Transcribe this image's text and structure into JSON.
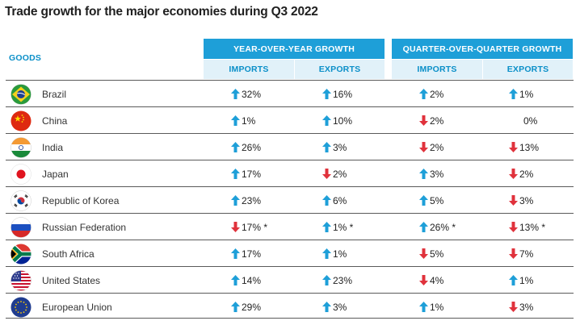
{
  "title": "Trade growth for the major economies during Q3 2022",
  "header": {
    "goods": "GOODS",
    "yoy": "YEAR-OVER-YEAR GROWTH",
    "qoq": "QUARTER-OVER-QUARTER GROWTH",
    "yoy_imports": "IMPORTS",
    "yoy_exports": "EXPORTS",
    "qoq_imports": "IMPORTS",
    "qoq_exports": "EXPORTS"
  },
  "colors": {
    "up": "#1e9fd8",
    "down": "#e0323c",
    "accent": "#1e9fd8"
  },
  "rows": [
    {
      "country": "Brazil",
      "flag": "brazil-flag-icon",
      "yoy_imp": {
        "dir": "up",
        "text": "32%"
      },
      "yoy_exp": {
        "dir": "up",
        "text": "16%"
      },
      "qoq_imp": {
        "dir": "up",
        "text": "2%"
      },
      "qoq_exp": {
        "dir": "up",
        "text": "1%"
      }
    },
    {
      "country": "China",
      "flag": "china-flag-icon",
      "yoy_imp": {
        "dir": "up",
        "text": "1%"
      },
      "yoy_exp": {
        "dir": "up",
        "text": "10%"
      },
      "qoq_imp": {
        "dir": "down",
        "text": "2%"
      },
      "qoq_exp": {
        "dir": "none",
        "text": "0%"
      }
    },
    {
      "country": "India",
      "flag": "india-flag-icon",
      "yoy_imp": {
        "dir": "up",
        "text": "26%"
      },
      "yoy_exp": {
        "dir": "up",
        "text": "3%"
      },
      "qoq_imp": {
        "dir": "down",
        "text": "2%"
      },
      "qoq_exp": {
        "dir": "down",
        "text": "13%"
      }
    },
    {
      "country": "Japan",
      "flag": "japan-flag-icon",
      "yoy_imp": {
        "dir": "up",
        "text": "17%"
      },
      "yoy_exp": {
        "dir": "down",
        "text": "2%"
      },
      "qoq_imp": {
        "dir": "up",
        "text": "3%"
      },
      "qoq_exp": {
        "dir": "down",
        "text": "2%"
      }
    },
    {
      "country": "Republic of Korea",
      "flag": "korea-flag-icon",
      "yoy_imp": {
        "dir": "up",
        "text": "23%"
      },
      "yoy_exp": {
        "dir": "up",
        "text": "6%"
      },
      "qoq_imp": {
        "dir": "up",
        "text": "5%"
      },
      "qoq_exp": {
        "dir": "down",
        "text": "3%"
      }
    },
    {
      "country": "Russian Federation",
      "flag": "russia-flag-icon",
      "yoy_imp": {
        "dir": "down",
        "text": "17% *"
      },
      "yoy_exp": {
        "dir": "up",
        "text": "1% *"
      },
      "qoq_imp": {
        "dir": "up",
        "text": "26% *"
      },
      "qoq_exp": {
        "dir": "down",
        "text": "13% *"
      }
    },
    {
      "country": "South Africa",
      "flag": "south-africa-flag-icon",
      "yoy_imp": {
        "dir": "up",
        "text": "17%"
      },
      "yoy_exp": {
        "dir": "up",
        "text": "1%"
      },
      "qoq_imp": {
        "dir": "down",
        "text": "5%"
      },
      "qoq_exp": {
        "dir": "down",
        "text": "7%"
      }
    },
    {
      "country": "United States",
      "flag": "usa-flag-icon",
      "yoy_imp": {
        "dir": "up",
        "text": "14%"
      },
      "yoy_exp": {
        "dir": "up",
        "text": "23%"
      },
      "qoq_imp": {
        "dir": "down",
        "text": "4%"
      },
      "qoq_exp": {
        "dir": "up",
        "text": "1%"
      }
    },
    {
      "country": "European Union",
      "flag": "eu-flag-icon",
      "yoy_imp": {
        "dir": "up",
        "text": "29%"
      },
      "yoy_exp": {
        "dir": "up",
        "text": "3%"
      },
      "qoq_imp": {
        "dir": "up",
        "text": "1%"
      },
      "qoq_exp": {
        "dir": "down",
        "text": "3%"
      }
    }
  ]
}
